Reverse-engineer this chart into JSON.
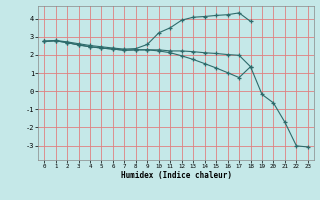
{
  "xlabel": "Humidex (Indice chaleur)",
  "x_values": [
    0,
    1,
    2,
    3,
    4,
    5,
    6,
    7,
    8,
    9,
    10,
    11,
    12,
    13,
    14,
    15,
    16,
    17,
    18,
    19,
    20,
    21,
    22,
    23
  ],
  "curve1": [
    2.75,
    2.8,
    2.72,
    2.62,
    2.52,
    2.45,
    2.38,
    2.32,
    2.35,
    2.58,
    3.22,
    3.5,
    3.92,
    4.08,
    4.12,
    4.18,
    4.22,
    4.32,
    3.85,
    null,
    null,
    null,
    null,
    null
  ],
  "curve2": [
    2.75,
    2.78,
    2.68,
    2.55,
    2.45,
    2.38,
    2.32,
    2.26,
    2.28,
    2.28,
    2.28,
    2.22,
    2.22,
    2.18,
    2.12,
    2.08,
    2.02,
    1.98,
    1.35,
    null,
    null,
    null,
    null,
    null
  ],
  "curve3": [
    2.75,
    2.78,
    2.68,
    2.55,
    2.45,
    2.38,
    2.32,
    2.26,
    2.28,
    2.28,
    2.22,
    2.12,
    1.95,
    1.75,
    1.52,
    1.28,
    1.02,
    0.75,
    1.35,
    -0.18,
    -0.65,
    -1.72,
    -3.02,
    -3.08
  ],
  "line_color": "#2d6b6b",
  "bg_color": "#c5e8e8",
  "grid_color": "#e08080",
  "ylim": [
    -3.8,
    4.7
  ],
  "xlim": [
    -0.5,
    23.5
  ],
  "yticks": [
    -3,
    -2,
    -1,
    0,
    1,
    2,
    3,
    4
  ],
  "xticks": [
    0,
    1,
    2,
    3,
    4,
    5,
    6,
    7,
    8,
    9,
    10,
    11,
    12,
    13,
    14,
    15,
    16,
    17,
    18,
    19,
    20,
    21,
    22,
    23
  ]
}
